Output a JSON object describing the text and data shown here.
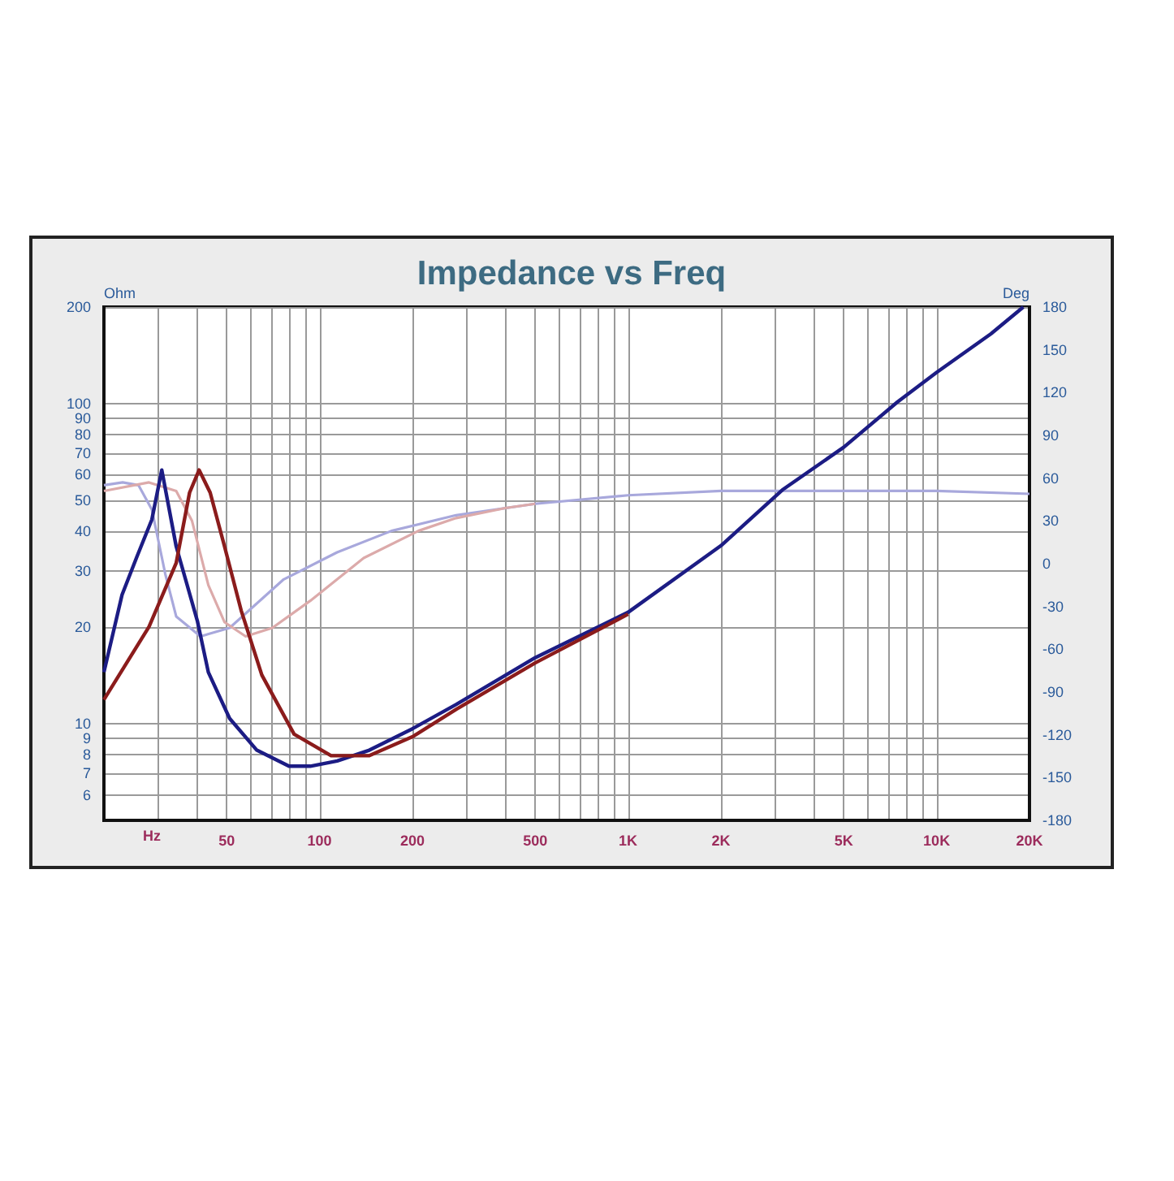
{
  "chart_data": {
    "type": "line",
    "title": "Impedance vs Freq",
    "xlabel": "Hz",
    "ylabel": "Ohm",
    "y2label": "Deg",
    "log": "xy",
    "grid": true,
    "marker": "none",
    "xlim": [
      20,
      20000
    ],
    "xticks": [
      {
        "value": 20,
        "label": null
      },
      {
        "value": 30,
        "label": null
      },
      {
        "value": 40,
        "label": null
      },
      50,
      {
        "value": 60,
        "label": null
      },
      {
        "value": 70,
        "label": null
      },
      {
        "value": 80,
        "label": null
      },
      {
        "value": 90,
        "label": null
      },
      100,
      200,
      {
        "value": 300,
        "label": null
      },
      {
        "value": 400,
        "label": null
      },
      500,
      {
        "value": 600,
        "label": null
      },
      {
        "value": 700,
        "label": null
      },
      {
        "value": 800,
        "label": null
      },
      {
        "value": 900,
        "label": null
      },
      {
        "value": 1000,
        "label": "1K"
      },
      {
        "value": 2000,
        "label": "2K"
      },
      {
        "value": 3000,
        "label": null
      },
      {
        "value": 4000,
        "label": null
      },
      {
        "value": 5000,
        "label": "5K"
      },
      {
        "value": 6000,
        "label": null
      },
      {
        "value": 7000,
        "label": null
      },
      {
        "value": 8000,
        "label": null
      },
      {
        "value": 9000,
        "label": null
      },
      {
        "value": 10000,
        "label": "10K"
      },
      {
        "value": 20000,
        "label": "20K"
      }
    ],
    "ylim": [
      5,
      200
    ],
    "yticks": [
      {
        "value": 5,
        "label": null
      },
      6,
      7,
      8,
      9,
      10,
      20,
      30,
      40,
      50,
      60,
      70,
      80,
      90,
      100,
      200
    ],
    "y2lim": [
      -180,
      180
    ],
    "y2ticks": [
      -180,
      -150,
      -120,
      -90,
      -60,
      -30,
      0,
      30,
      60,
      90,
      120,
      150,
      180
    ],
    "series": [
      {
        "color": "#1c1c84",
        "x": [
          20,
          22.9,
          25.5,
          28.6,
          30.8,
          34.3,
          40.2,
          43.6,
          51.1,
          62.6,
          79.6,
          93.3,
          114,
          145,
          200,
          277,
          500,
          1000,
          2000,
          3160,
          5000,
          7460,
          10000,
          15000,
          19100
        ],
        "values": [
          14.5,
          25.3,
          33,
          43.4,
          62,
          35.8,
          20.9,
          14.5,
          10.4,
          8.28,
          7.38,
          7.38,
          7.66,
          8.28,
          9.66,
          11.5,
          16.1,
          22.3,
          36,
          53.7,
          73,
          101,
          125,
          165,
          200
        ]
      },
      {
        "color": "#8b1c1c",
        "x": [
          20,
          28,
          34.3,
          37.9,
          40.7,
          44.2,
          49.2,
          55.7,
          65,
          82.7,
          109,
          145,
          200,
          277,
          500,
          1000
        ],
        "values": [
          11.9,
          20.1,
          31.8,
          52.7,
          62,
          52.7,
          35.8,
          22.6,
          14.2,
          9.29,
          7.96,
          7.96,
          9.12,
          11.1,
          15.5,
          22
        ]
      },
      {
        "color": "#a8a8dc",
        "axis": "y2",
        "x": [
          20,
          23,
          25.9,
          28.6,
          31.6,
          34.3,
          41.1,
          51.1,
          76.5,
          114,
          171,
          277,
          500,
          1000,
          2000,
          5000,
          10000,
          20000
        ],
        "values": [
          55,
          57,
          55,
          38,
          -7,
          -37,
          -51,
          -45,
          -11,
          8,
          23,
          34,
          42,
          48,
          51,
          51,
          51,
          49
        ]
      },
      {
        "color": "#dcaaaa",
        "axis": "y2",
        "x": [
          20,
          28,
          34.3,
          38.6,
          43.6,
          49.2,
          57.6,
          70.3,
          93.3,
          139,
          209,
          277,
          400,
          500
        ],
        "values": [
          51,
          57,
          51,
          30,
          -15,
          -41,
          -51,
          -45,
          -26,
          4,
          23,
          32,
          39,
          42
        ]
      }
    ]
  }
}
